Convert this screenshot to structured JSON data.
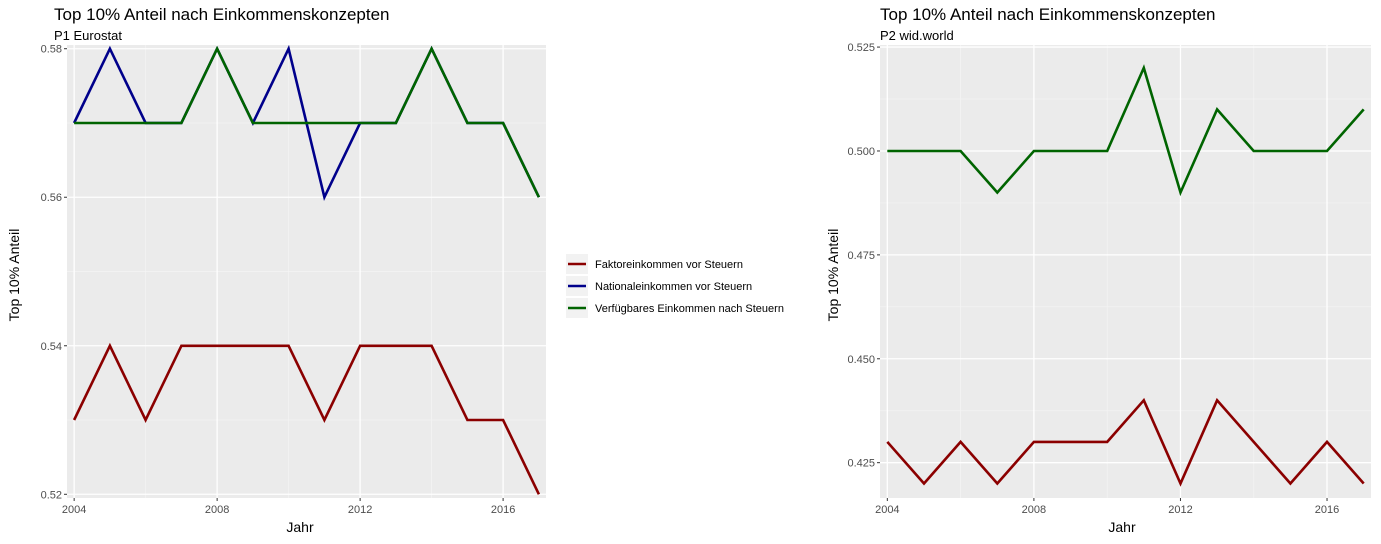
{
  "colors": {
    "panel_bg": "#ebebeb",
    "grid_major": "#ffffff",
    "grid_minor": "#f4f4f4",
    "Faktoreinkommen vor Steuern": "#8b0000",
    "Nationaleinkommen vor Steuern": "#00008b",
    "Verfügbares Einkommen nach Steuern": "#006400"
  },
  "legend": {
    "entries": [
      "Faktoreinkommen vor Steuern",
      "Nationaleinkommen vor Steuern",
      "Verfügbares Einkommen nach Steuern"
    ],
    "placement": "between panels, center-right of left panel"
  },
  "chart_data": [
    {
      "type": "line",
      "title": "Top 10% Anteil nach Einkommenskonzepten",
      "subtitle": "P1 Eurostat",
      "xlabel": "Jahr",
      "ylabel": "Top 10% Anteil",
      "xlim": [
        2003.8,
        2017.2
      ],
      "ylim": [
        0.5195,
        0.5805
      ],
      "xticks": [
        2004,
        2008,
        2012,
        2016
      ],
      "yticks": [
        0.52,
        0.54,
        0.56,
        0.58
      ],
      "ytick_labels": [
        "0.52",
        "0.54",
        "0.56",
        "0.58"
      ],
      "grid": true,
      "x": [
        2004,
        2005,
        2006,
        2007,
        2008,
        2009,
        2010,
        2011,
        2012,
        2013,
        2014,
        2015,
        2016,
        2017
      ],
      "series": [
        {
          "name": "Faktoreinkommen vor Steuern",
          "values": [
            0.53,
            0.54,
            0.53,
            0.54,
            0.54,
            0.54,
            0.54,
            0.53,
            0.54,
            0.54,
            0.54,
            0.53,
            0.53,
            0.52
          ]
        },
        {
          "name": "Nationaleinkommen vor Steuern",
          "values": [
            0.57,
            0.58,
            0.57,
            0.57,
            0.58,
            0.57,
            0.58,
            0.56,
            0.57,
            0.57,
            0.58,
            0.57,
            0.57,
            0.56
          ]
        },
        {
          "name": "Verfügbares Einkommen nach Steuern",
          "values": [
            0.57,
            0.57,
            0.57,
            0.57,
            0.58,
            0.57,
            0.57,
            0.57,
            0.57,
            0.57,
            0.58,
            0.57,
            0.57,
            0.56
          ]
        }
      ]
    },
    {
      "type": "line",
      "title": "Top 10% Anteil nach Einkommenskonzepten",
      "subtitle": "P2 wid.world",
      "xlabel": "Jahr",
      "ylabel": "Top 10% Anteil",
      "xlim": [
        2003.8,
        2017.2
      ],
      "ylim": [
        0.4165,
        0.5255
      ],
      "xticks": [
        2004,
        2008,
        2012,
        2016
      ],
      "yticks": [
        0.425,
        0.45,
        0.475,
        0.5,
        0.525
      ],
      "ytick_labels": [
        "0.425",
        "0.450",
        "0.475",
        "0.500",
        "0.525"
      ],
      "grid": true,
      "x": [
        2004,
        2005,
        2006,
        2007,
        2008,
        2009,
        2010,
        2011,
        2012,
        2013,
        2014,
        2015,
        2016,
        2017
      ],
      "series": [
        {
          "name": "Faktoreinkommen vor Steuern",
          "values": [
            0.43,
            0.42,
            0.43,
            0.42,
            0.43,
            0.43,
            0.43,
            0.44,
            0.42,
            0.44,
            0.43,
            0.42,
            0.43,
            0.42
          ]
        },
        {
          "name": "Verfügbares Einkommen nach Steuern",
          "values": [
            0.5,
            0.5,
            0.5,
            0.49,
            0.5,
            0.5,
            0.5,
            0.52,
            0.49,
            0.51,
            0.5,
            0.5,
            0.5,
            0.51
          ]
        }
      ]
    }
  ]
}
